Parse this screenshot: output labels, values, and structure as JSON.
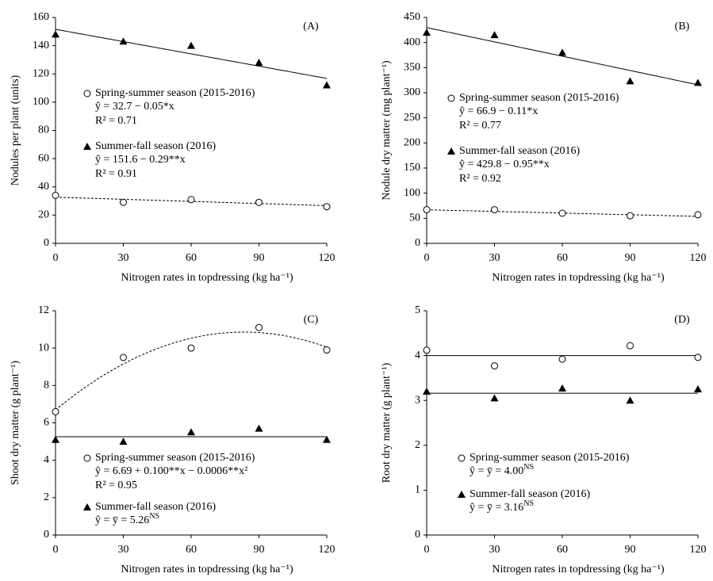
{
  "chart_data": [
    {
      "type": "scatter",
      "panel_label": "(A)",
      "xlabel": "Nitrogen rates in topdressing (kg ha⁻¹)",
      "ylabel": "Nodules per plant (units)",
      "x": [
        0,
        30,
        60,
        90,
        120
      ],
      "xlim": [
        0,
        120
      ],
      "xticks": [
        0,
        30,
        60,
        90,
        120
      ],
      "ylim": [
        0,
        160
      ],
      "yticks": [
        0,
        20,
        40,
        60,
        80,
        100,
        120,
        140,
        160
      ],
      "series": [
        {
          "name": "Spring-summer season (2015-2016)",
          "marker": "circle",
          "color": "#000000",
          "values": [
            34,
            29,
            31,
            29,
            26
          ],
          "equation": "ŷ = 32.7 − 0.05*x",
          "r2": "R² = 0.71",
          "fit_coefficients": [
            32.7,
            -0.05
          ],
          "fit_style": "dashed"
        },
        {
          "name": "Summer-fall season (2016)",
          "marker": "triangle",
          "color": "#000000",
          "values": [
            148,
            143,
            140,
            128,
            112
          ],
          "equation": "ŷ = 151.6 − 0.29**x",
          "r2": "R² = 0.91",
          "fit_coefficients": [
            151.6,
            -0.29
          ],
          "fit_style": "solid"
        }
      ]
    },
    {
      "type": "scatter",
      "panel_label": "(B)",
      "xlabel": "Nitrogen rates in topdressing (kg ha⁻¹)",
      "ylabel": "Nodule dry matter (mg plant⁻¹)",
      "x": [
        0,
        30,
        60,
        90,
        120
      ],
      "xlim": [
        0,
        120
      ],
      "xticks": [
        0,
        30,
        60,
        90,
        120
      ],
      "ylim": [
        0,
        450
      ],
      "yticks": [
        0,
        50,
        100,
        150,
        200,
        250,
        300,
        350,
        400,
        450
      ],
      "series": [
        {
          "name": "Spring-summer  season (2015-2016)",
          "marker": "circle",
          "color": "#000000",
          "values": [
            67,
            67,
            60,
            55,
            57
          ],
          "equation": "ŷ = 66.9 − 0.11*x",
          "r2": "R² = 0.77",
          "fit_coefficients": [
            66.9,
            -0.11
          ],
          "fit_style": "dashed"
        },
        {
          "name": "Summer-fall season (2016)",
          "marker": "triangle",
          "color": "#000000",
          "values": [
            420,
            415,
            380,
            323,
            320
          ],
          "equation": "ŷ = 429.8 − 0.95**x",
          "r2": "R² = 0.92",
          "fit_coefficients": [
            429.8,
            -0.95
          ],
          "fit_style": "solid"
        }
      ]
    },
    {
      "type": "scatter",
      "panel_label": "(C)",
      "xlabel": "Nitrogen rates in topdressing (kg ha⁻¹)",
      "ylabel": "Shoot dry matter (g plant⁻¹)",
      "x": [
        0,
        30,
        60,
        90,
        120
      ],
      "xlim": [
        0,
        120
      ],
      "xticks": [
        0,
        30,
        60,
        90,
        120
      ],
      "ylim": [
        0,
        12
      ],
      "yticks": [
        0,
        2,
        4,
        6,
        8,
        10,
        12
      ],
      "series": [
        {
          "name": "Spring-summer  season (2015-2016)",
          "marker": "circle",
          "color": "#000000",
          "values": [
            6.6,
            9.5,
            10.0,
            11.1,
            9.9
          ],
          "equation": "ŷ = 6.69 + 0.100**x − 0.0006**x²",
          "r2": "R² = 0.95",
          "fit_coefficients": [
            6.69,
            0.1,
            -0.0006
          ],
          "fit_style": "dashed"
        },
        {
          "name": "Summer-fall season (2016)",
          "marker": "triangle",
          "color": "#000000",
          "values": [
            5.1,
            5.0,
            5.5,
            5.7,
            5.1
          ],
          "equation": "ŷ = ȳ = 5.26",
          "equation_sup": "NS",
          "fit_coefficients": [
            5.26
          ],
          "fit_style": "solid"
        }
      ]
    },
    {
      "type": "scatter",
      "panel_label": "(D)",
      "xlabel": "Nitrogen rates in topdressing (kg ha⁻¹)",
      "ylabel": "Root dry matter  (g plant⁻¹)",
      "x": [
        0,
        30,
        60,
        90,
        120
      ],
      "xlim": [
        0,
        120
      ],
      "xticks": [
        0,
        30,
        60,
        90,
        120
      ],
      "ylim": [
        0,
        5
      ],
      "yticks": [
        0,
        1,
        2,
        3,
        4,
        5
      ],
      "series": [
        {
          "name": "Spring-summer  season (2015-2016)",
          "marker": "circle",
          "color": "#000000",
          "values": [
            4.12,
            3.77,
            3.92,
            4.22,
            3.96
          ],
          "equation": "ŷ = ȳ = 4.00",
          "equation_sup": "NS",
          "fit_coefficients": [
            4.0
          ],
          "fit_style": "solid"
        },
        {
          "name": "Summer-fall season (2016)",
          "marker": "triangle",
          "color": "#000000",
          "values": [
            3.2,
            3.05,
            3.27,
            3.0,
            3.25
          ],
          "equation": "ŷ = ȳ = 3.16",
          "equation_sup": "NS",
          "fit_coefficients": [
            3.16
          ],
          "fit_style": "solid"
        }
      ]
    }
  ]
}
